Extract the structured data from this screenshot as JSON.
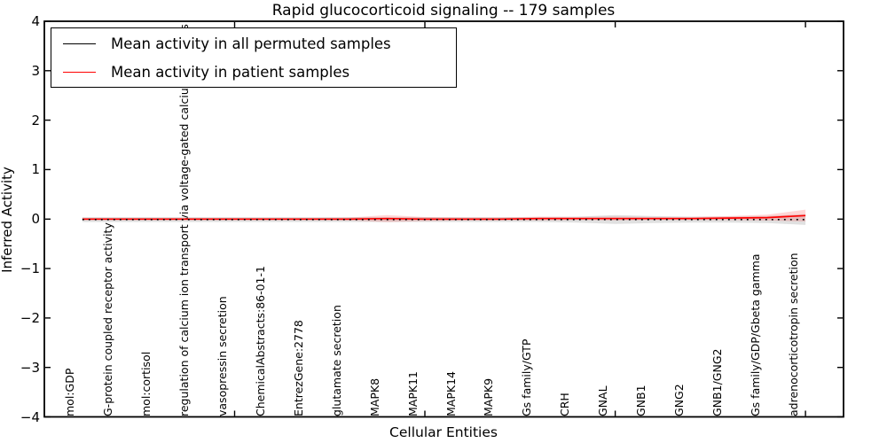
{
  "chart_data": {
    "type": "line",
    "title": "Rapid glucocorticoid signaling -- 179 samples",
    "xlabel": "Cellular Entities",
    "ylabel": "Inferred Activity",
    "ylim": [
      -4,
      4
    ],
    "grid": false,
    "legend_position": "upper left",
    "yticks": [
      4,
      3,
      2,
      1,
      0,
      -1,
      -2,
      -3,
      -4
    ],
    "x_axis_tick_units": [
      5,
      10,
      15,
      20
    ],
    "categories": [
      "mol:GDP",
      "G-protein coupled receptor activity",
      "mol:cortisol",
      "regulation of calcium ion transport via voltage-gated calcium channels",
      "vasopressin secretion",
      "ChemicalAbstracts:86-01-1",
      "EntrezGene:2778",
      "glutamate secretion",
      "MAPK8",
      "MAPK11",
      "MAPK14",
      "MAPK9",
      "Gs family/GTP",
      "CRH",
      "GNAL",
      "GNB1",
      "GNG2",
      "GNB1/GNG2",
      "Gs family/GDP/Gbeta gamma",
      "adrenocorticotropin secretion"
    ],
    "series": [
      {
        "name": "Mean activity in all permuted samples",
        "color": "#000000",
        "style": "dotted",
        "values": [
          -0.01,
          -0.01,
          -0.01,
          -0.01,
          -0.01,
          -0.01,
          -0.01,
          -0.01,
          -0.01,
          -0.01,
          -0.01,
          -0.01,
          -0.01,
          -0.01,
          -0.01,
          -0.01,
          -0.01,
          -0.01,
          -0.01,
          -0.01
        ],
        "band_std": [
          0.05,
          0.05,
          0.05,
          0.05,
          0.05,
          0.05,
          0.05,
          0.05,
          0.05,
          0.05,
          0.05,
          0.05,
          0.05,
          0.06,
          0.09,
          0.07,
          0.06,
          0.06,
          0.07,
          0.11
        ],
        "band_color": "#bbbbbb",
        "band_opacity": 0.45
      },
      {
        "name": "Mean activity in patient samples",
        "color": "#ff0000",
        "style": "solid",
        "values": [
          0,
          0,
          0,
          0,
          0,
          0,
          0,
          0,
          0.01,
          0,
          0,
          0,
          0.01,
          0.01,
          0.01,
          0.01,
          0.01,
          0.02,
          0.03,
          0.07
        ],
        "band_std": [
          0.02,
          0.02,
          0.02,
          0.02,
          0.02,
          0.02,
          0.02,
          0.03,
          0.07,
          0.04,
          0.03,
          0.03,
          0.04,
          0.03,
          0.04,
          0.03,
          0.03,
          0.04,
          0.06,
          0.12
        ],
        "band_color": "#ff0000",
        "band_opacity": 0.16
      }
    ]
  }
}
